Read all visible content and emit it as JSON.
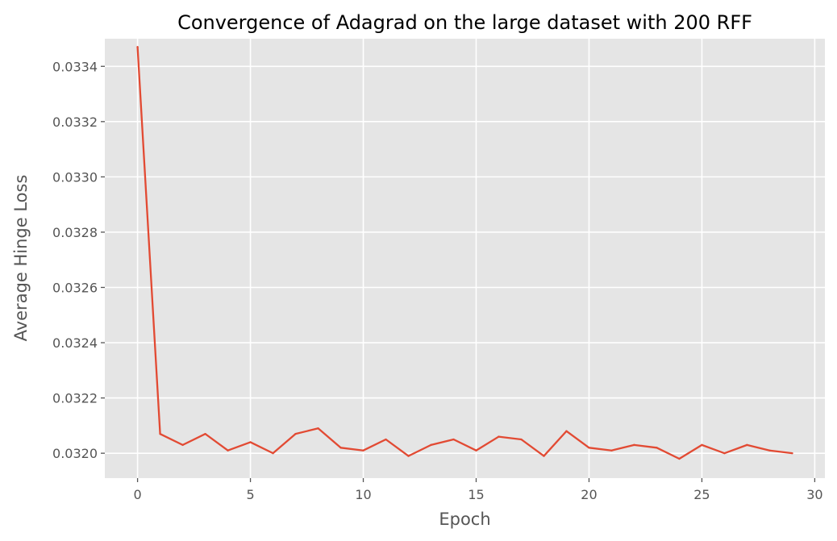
{
  "chart_data": {
    "type": "line",
    "title": "Convergence of Adagrad on the large dataset with 200 RFF",
    "xlabel": "Epoch",
    "ylabel": "Average Hinge Loss",
    "xlim": [
      -1.45,
      30.45
    ],
    "ylim": [
      0.03191,
      0.0335
    ],
    "grid": true,
    "x_ticks": [
      0,
      5,
      10,
      15,
      20,
      25,
      30
    ],
    "x_tick_labels": [
      "0",
      "5",
      "10",
      "15",
      "20",
      "25",
      "30"
    ],
    "y_ticks": [
      0.032,
      0.0322,
      0.0324,
      0.0326,
      0.0328,
      0.033,
      0.0332,
      0.0334
    ],
    "y_tick_labels": [
      "0.0320",
      "0.0322",
      "0.0324",
      "0.0326",
      "0.0328",
      "0.0330",
      "0.0332",
      "0.0334"
    ],
    "series": [
      {
        "color": "#e24a33",
        "x": [
          0,
          1,
          2,
          3,
          4,
          5,
          6,
          7,
          8,
          9,
          10,
          11,
          12,
          13,
          14,
          15,
          16,
          17,
          18,
          19,
          20,
          21,
          22,
          23,
          24,
          25,
          26,
          27,
          28,
          29
        ],
        "y": [
          0.03347,
          0.03207,
          0.03203,
          0.03207,
          0.03201,
          0.03204,
          0.032,
          0.03207,
          0.03209,
          0.03202,
          0.03201,
          0.03205,
          0.03199,
          0.03203,
          0.03205,
          0.03201,
          0.03206,
          0.03205,
          0.03199,
          0.03208,
          0.03202,
          0.03201,
          0.03203,
          0.03202,
          0.03198,
          0.03203,
          0.032,
          0.03203,
          0.03201,
          0.032
        ]
      }
    ]
  },
  "colors": {
    "plot_background": "#e5e5e5",
    "grid": "#ffffff",
    "line": "#e24a33",
    "text": "#555555"
  }
}
